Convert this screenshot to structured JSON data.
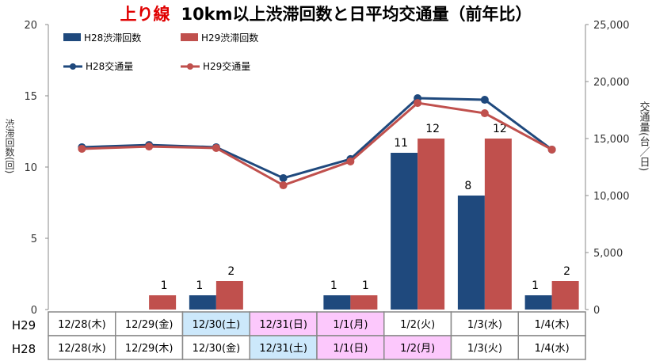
{
  "title": {
    "prefix": "上り線",
    "main": "10km以上渋滞回数と日平均交通量（前年比）"
  },
  "chart_data": {
    "type": "bar+line",
    "left_axis": {
      "label": "渋滞回数(回)",
      "range": [
        0,
        20
      ],
      "ticks": [
        "0",
        "5",
        "10",
        "15",
        "20"
      ]
    },
    "right_axis": {
      "label": "交通量(台／日)",
      "range": [
        0,
        25000
      ],
      "ticks": [
        "0",
        "5,000",
        "10,000",
        "15,000",
        "20,000",
        "25,000"
      ]
    },
    "row_labels": [
      "H29",
      "H28"
    ],
    "categories_h29": [
      "12/28(木)",
      "12/29(金)",
      "12/30(土)",
      "12/31(日)",
      "1/1(月)",
      "1/2(火)",
      "1/3(水)",
      "1/4(木)"
    ],
    "categories_h28": [
      "12/28(水)",
      "12/29(木)",
      "12/30(金)",
      "12/31(土)",
      "1/1(日)",
      "1/2(月)",
      "1/3(火)",
      "1/4(水)"
    ],
    "cell_colors_h29": [
      "#ffffff",
      "#ffffff",
      "#cce8fb",
      "#fcc8fc",
      "#fcc8fc",
      "#ffffff",
      "#ffffff",
      "#ffffff"
    ],
    "cell_colors_h28": [
      "#ffffff",
      "#ffffff",
      "#ffffff",
      "#cce8fb",
      "#fcc8fc",
      "#fcc8fc",
      "#ffffff",
      "#ffffff"
    ],
    "bar_series": [
      {
        "name": "H28渋滞回数",
        "color": "#1f497d",
        "values": [
          0,
          0,
          1,
          0,
          1,
          11,
          8,
          1
        ]
      },
      {
        "name": "H29渋滞回数",
        "color": "#c0504d",
        "values": [
          0,
          1,
          2,
          0,
          1,
          12,
          12,
          2
        ]
      }
    ],
    "line_series": [
      {
        "name": "H28交通量",
        "color": "#1f497d",
        "values": [
          14240,
          14440,
          14240,
          11530,
          13200,
          18540,
          18400,
          14030
        ]
      },
      {
        "name": "H29交通量",
        "color": "#c0504d",
        "values": [
          14100,
          14300,
          14170,
          10900,
          12990,
          18120,
          17220,
          14030
        ]
      }
    ],
    "legend_position": "top-left"
  }
}
